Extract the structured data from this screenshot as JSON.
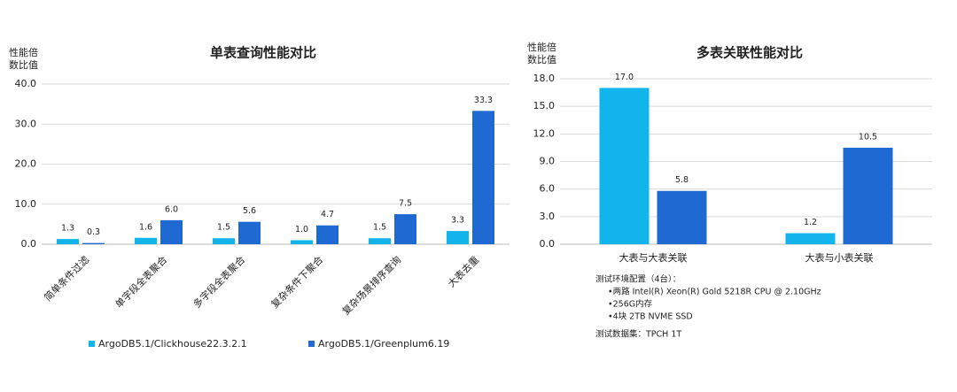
{
  "chart_data": [
    {
      "type": "bar",
      "title": "单表查询性能对比",
      "y_label": [
        "性能倍",
        "数比值"
      ],
      "categories": [
        "简单条件过滤",
        "单字段全表聚合",
        "多字段全表聚合",
        "复杂条件下聚合",
        "复杂场景排序查询",
        "大表去重"
      ],
      "series": [
        {
          "name": "ArgoDB5.1/Clickhouse22.3.2.1",
          "color": "#12b4ec",
          "values": [
            1.3,
            1.6,
            1.5,
            1.0,
            1.5,
            3.3
          ],
          "value_labels": [
            "1.3",
            "1.6",
            "1.5",
            "1.0",
            "1.5",
            "3.3"
          ]
        },
        {
          "name": "ArgoDB5.1/Greenplum6.19",
          "color": "#1f69d3",
          "values": [
            0.3,
            6.0,
            5.6,
            4.7,
            7.5,
            33.3
          ],
          "value_labels": [
            "0.3",
            "6.0",
            "5.6",
            "4.7",
            "7.5",
            "33.3"
          ]
        }
      ],
      "ylim": [
        0,
        40
      ],
      "yticks": [
        {
          "value": 0,
          "label": "0.0"
        },
        {
          "value": 10,
          "label": "10.0"
        },
        {
          "value": 20,
          "label": "20.0"
        },
        {
          "value": 30,
          "label": "30.0"
        },
        {
          "value": 40,
          "label": "40.0"
        }
      ],
      "grid": true,
      "legend": "bottom"
    },
    {
      "type": "bar",
      "title": "多表关联性能对比",
      "y_label": [
        "性能倍",
        "数比值"
      ],
      "categories": [
        "大表与大表关联",
        "大表与小表关联"
      ],
      "series": [
        {
          "color": "#12b4ec",
          "values": [
            17.0,
            1.2
          ],
          "value_labels": [
            "17.0",
            "1.2"
          ]
        },
        {
          "color": "#1f69d3",
          "values": [
            5.8,
            10.5
          ],
          "value_labels": [
            "5.8",
            "10.5"
          ]
        }
      ],
      "ylim": [
        0,
        18
      ],
      "yticks": [
        {
          "value": 0,
          "label": "0.0"
        },
        {
          "value": 3,
          "label": "3.0"
        },
        {
          "value": 6,
          "label": "6.0"
        },
        {
          "value": 9,
          "label": "9.0"
        },
        {
          "value": 12,
          "label": "12.0"
        },
        {
          "value": 15,
          "label": "15.0"
        },
        {
          "value": 18,
          "label": "18.0"
        }
      ],
      "grid": true,
      "notes": [
        "测试环境配置（4台）：",
        "•两路 Intel(R) Xeon(R) Gold 5218R CPU @ 2.10GHz",
        "•256G内存",
        "•4块 2TB NVME SSD",
        "测试数据集：TPCH 1T"
      ]
    }
  ]
}
